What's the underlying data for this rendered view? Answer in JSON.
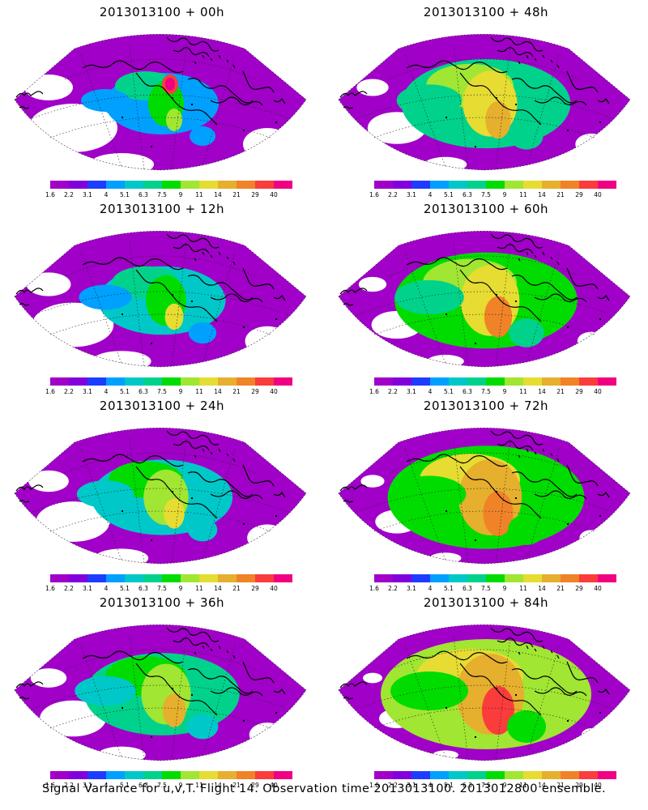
{
  "chart_data": {
    "type": "heatmap",
    "title": "",
    "panels": [
      {
        "title": "2013013100 + 00h",
        "forecast_hour": 0
      },
      {
        "title": "2013013100 + 48h",
        "forecast_hour": 48
      },
      {
        "title": "2013013100 + 12h",
        "forecast_hour": 12
      },
      {
        "title": "2013013100 + 60h",
        "forecast_hour": 60
      },
      {
        "title": "2013013100 + 24h",
        "forecast_hour": 24
      },
      {
        "title": "2013013100 + 72h",
        "forecast_hour": 72
      },
      {
        "title": "2013013100 + 36h",
        "forecast_hour": 36
      },
      {
        "title": "2013013100 + 84h",
        "forecast_hour": 84
      }
    ],
    "colorbar": {
      "tick_labels": [
        "1.6",
        "2.2",
        "3.1",
        "4",
        "5.1",
        "6.3",
        "7.5",
        "9",
        "11",
        "14",
        "21",
        "29",
        "40"
      ],
      "levels": [
        1.6,
        2.2,
        3.1,
        4,
        5.1,
        6.3,
        7.5,
        9,
        11,
        14,
        21,
        29,
        40
      ],
      "colors": [
        "#a000c8",
        "#8200dc",
        "#1e3cff",
        "#00a0ff",
        "#00c8c8",
        "#00d28c",
        "#00dc00",
        "#a0e632",
        "#e6dc32",
        "#e6af2d",
        "#f08228",
        "#fa3c3c",
        "#f00082"
      ]
    },
    "caption": "Signal Variance for u,v,T. Flight 14. Observation time 2013013100. 2013012800 ensemble."
  }
}
